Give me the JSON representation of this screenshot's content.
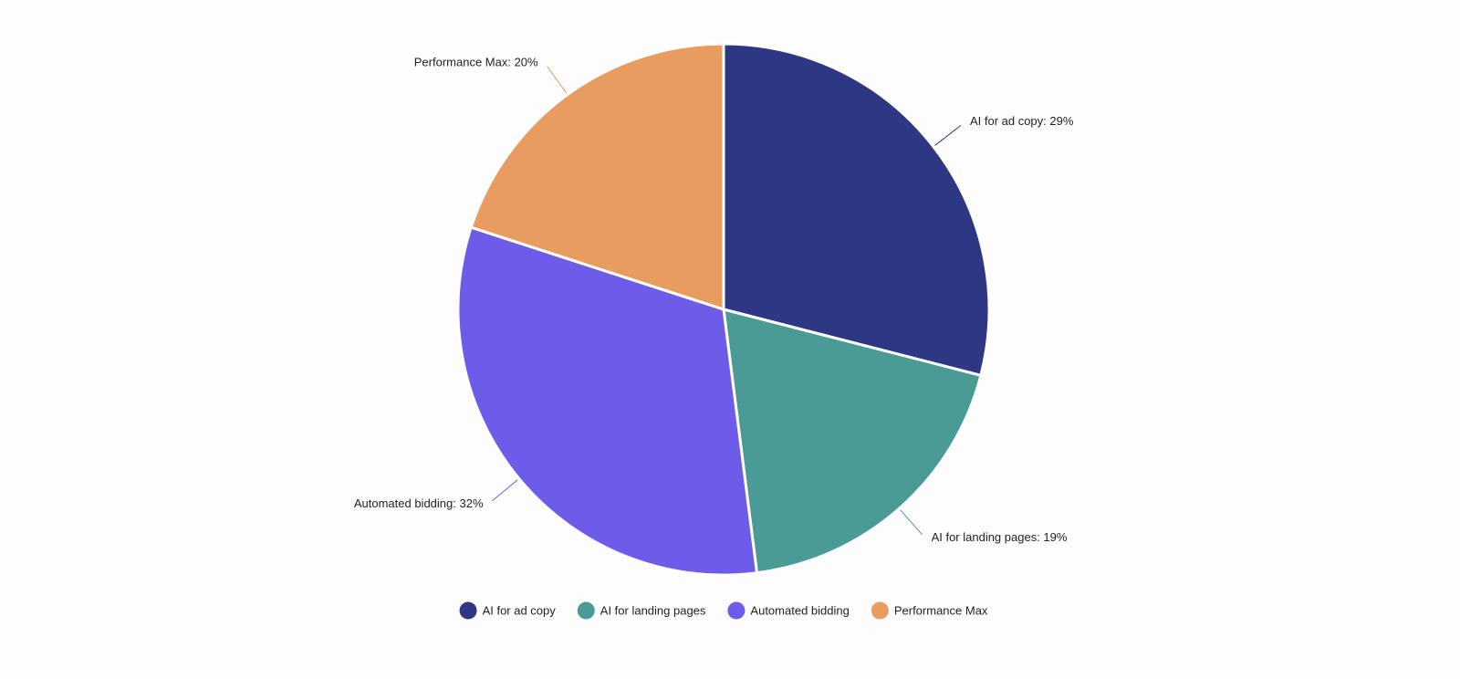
{
  "chart_data": {
    "type": "pie",
    "categories": [
      "AI for ad copy",
      "AI for landing pages",
      "Automated bidding",
      "Performance Max"
    ],
    "values": [
      29,
      19,
      32,
      20
    ],
    "value_labels": [
      "AI for ad copy: 29%",
      "AI for landing pages: 19%",
      "Automated bidding: 32%",
      "Performance Max: 20%"
    ],
    "colors": [
      "#2e3784",
      "#4a9a96",
      "#6c5ce7",
      "#e89c5f"
    ]
  }
}
